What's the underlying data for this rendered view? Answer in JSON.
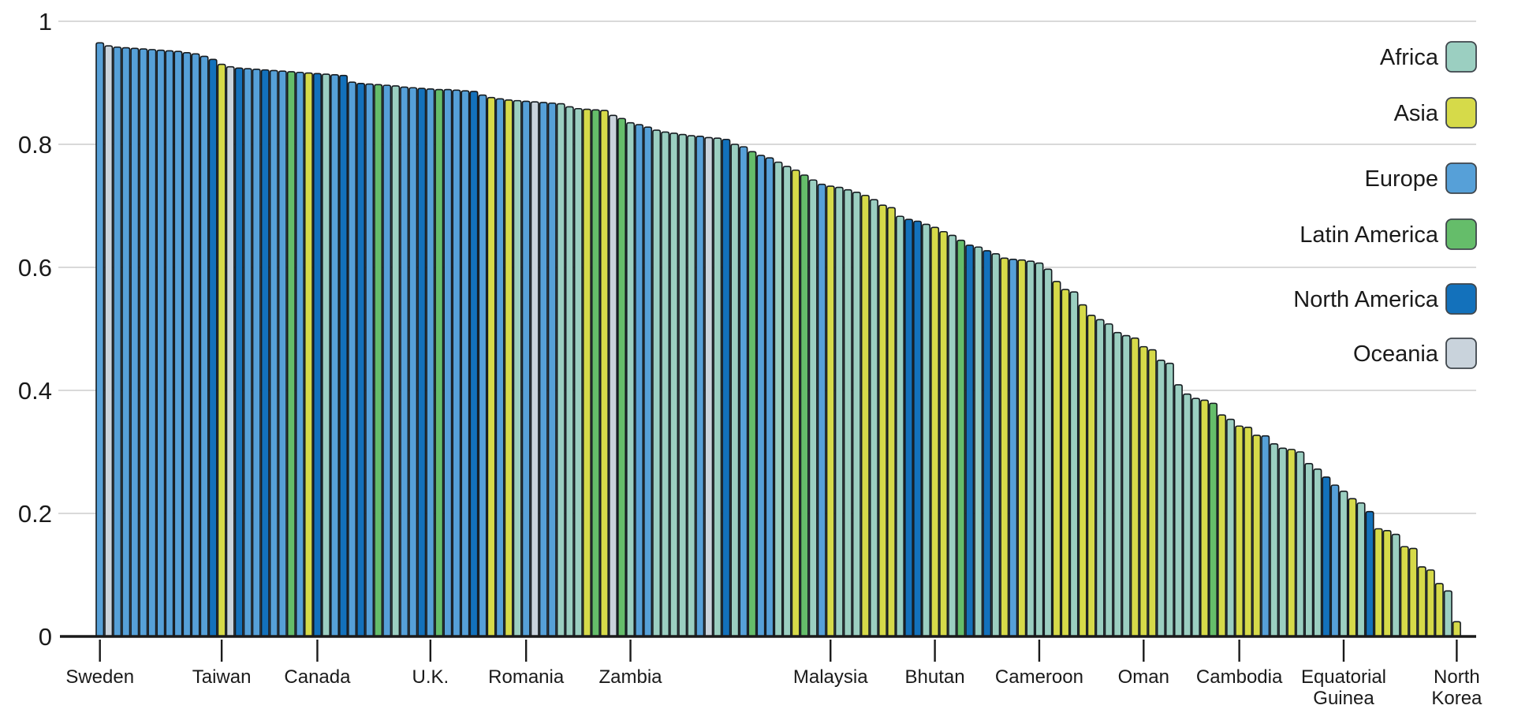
{
  "chart_data": {
    "type": "bar",
    "description": "Countries ranked in descending order of a 0-1 index, bar color by continent",
    "bar_count": 157,
    "sort": "descending",
    "y_axis": {
      "min": 0,
      "max": 1,
      "ticks": [
        0,
        0.2,
        0.4,
        0.6,
        0.8,
        1
      ],
      "tick_labels": [
        "0",
        "0.2",
        "0.4",
        "0.6",
        "0.8",
        "1"
      ],
      "grid": true
    },
    "x_axis": {
      "ticks": [
        {
          "rank": 1,
          "label": "Sweden",
          "lines": [
            "Sweden"
          ]
        },
        {
          "rank": 15,
          "label": "Taiwan",
          "lines": [
            "Taiwan"
          ]
        },
        {
          "rank": 26,
          "label": "Canada",
          "lines": [
            "Canada"
          ]
        },
        {
          "rank": 39,
          "label": "U.K.",
          "lines": [
            "U.K."
          ]
        },
        {
          "rank": 50,
          "label": "Romania",
          "lines": [
            "Romania"
          ]
        },
        {
          "rank": 62,
          "label": "Zambia",
          "lines": [
            "Zambia"
          ]
        },
        {
          "rank": 85,
          "label": "Malaysia",
          "lines": [
            "Malaysia"
          ]
        },
        {
          "rank": 97,
          "label": "Bhutan",
          "lines": [
            "Bhutan"
          ]
        },
        {
          "rank": 109,
          "label": "Cameroon",
          "lines": [
            "Cameroon"
          ]
        },
        {
          "rank": 121,
          "label": "Oman",
          "lines": [
            "Oman"
          ]
        },
        {
          "rank": 132,
          "label": "Cambodia",
          "lines": [
            "Cambodia"
          ]
        },
        {
          "rank": 144,
          "label": "Equatorial Guinea",
          "lines": [
            "Equatorial",
            "Guinea"
          ]
        },
        {
          "rank": 157,
          "label": "North Korea",
          "lines": [
            "North",
            "Korea"
          ]
        }
      ]
    },
    "legend": {
      "position": "top-right",
      "items": [
        {
          "code": "AF",
          "label": "Africa",
          "color": "#9bcfc1"
        },
        {
          "code": "AS",
          "label": "Asia",
          "color": "#d6da49"
        },
        {
          "code": "EU",
          "label": "Europe",
          "color": "#56a0d8"
        },
        {
          "code": "LA",
          "label": "Latin America",
          "color": "#65bd6a"
        },
        {
          "code": "NA",
          "label": "North America",
          "color": "#1371bb"
        },
        {
          "code": "OC",
          "label": "Oceania",
          "color": "#c9d3dc"
        }
      ]
    },
    "bars": {
      "values": [
        0.965,
        0.96,
        0.958,
        0.957,
        0.956,
        0.955,
        0.954,
        0.953,
        0.952,
        0.951,
        0.949,
        0.947,
        0.943,
        0.938,
        0.93,
        0.926,
        0.924,
        0.923,
        0.922,
        0.921,
        0.92,
        0.919,
        0.918,
        0.917,
        0.916,
        0.915,
        0.914,
        0.913,
        0.912,
        0.901,
        0.899,
        0.898,
        0.897,
        0.896,
        0.895,
        0.893,
        0.892,
        0.891,
        0.89,
        0.889,
        0.889,
        0.888,
        0.887,
        0.886,
        0.88,
        0.876,
        0.874,
        0.872,
        0.871,
        0.87,
        0.869,
        0.868,
        0.867,
        0.866,
        0.861,
        0.858,
        0.857,
        0.856,
        0.855,
        0.847,
        0.842,
        0.835,
        0.832,
        0.828,
        0.823,
        0.82,
        0.818,
        0.816,
        0.814,
        0.813,
        0.811,
        0.81,
        0.808,
        0.8,
        0.796,
        0.788,
        0.782,
        0.778,
        0.771,
        0.764,
        0.758,
        0.75,
        0.742,
        0.735,
        0.732,
        0.73,
        0.726,
        0.722,
        0.717,
        0.71,
        0.701,
        0.697,
        0.683,
        0.678,
        0.675,
        0.67,
        0.665,
        0.658,
        0.652,
        0.644,
        0.636,
        0.633,
        0.627,
        0.622,
        0.615,
        0.613,
        0.612,
        0.61,
        0.607,
        0.597,
        0.577,
        0.564,
        0.56,
        0.539,
        0.522,
        0.515,
        0.508,
        0.494,
        0.489,
        0.485,
        0.471,
        0.466,
        0.449,
        0.444,
        0.409,
        0.394,
        0.387,
        0.384,
        0.379,
        0.36,
        0.353,
        0.342,
        0.34,
        0.327,
        0.326,
        0.313,
        0.306,
        0.304,
        0.3,
        0.281,
        0.272,
        0.259,
        0.246,
        0.236,
        0.224,
        0.217,
        0.203,
        0.175,
        0.172,
        0.166,
        0.146,
        0.143,
        0.113,
        0.108,
        0.086,
        0.074,
        0.024
      ],
      "continents": [
        "EU",
        "OC",
        "EU",
        "EU",
        "EU",
        "EU",
        "EU",
        "EU",
        "EU",
        "EU",
        "EU",
        "EU",
        "EU",
        "NA",
        "AS",
        "OC",
        "NA",
        "EU",
        "EU",
        "NA",
        "EU",
        "EU",
        "LA",
        "EU",
        "AS",
        "NA",
        "AF",
        "EU",
        "NA",
        "EU",
        "NA",
        "EU",
        "LA",
        "EU",
        "AF",
        "EU",
        "EU",
        "NA",
        "EU",
        "LA",
        "EU",
        "EU",
        "EU",
        "NA",
        "EU",
        "AS",
        "EU",
        "AS",
        "AF",
        "EU",
        "OC",
        "EU",
        "EU",
        "AF",
        "AF",
        "AF",
        "AS",
        "LA",
        "AS",
        "OC",
        "LA",
        "AF",
        "EU",
        "EU",
        "AF",
        "AF",
        "AF",
        "AF",
        "AF",
        "EU",
        "OC",
        "AF",
        "NA",
        "AF",
        "EU",
        "LA",
        "EU",
        "EU",
        "AF",
        "AF",
        "AS",
        "LA",
        "AF",
        "EU",
        "AS",
        "AF",
        "AF",
        "AF",
        "AS",
        "AF",
        "AS",
        "AS",
        "AF",
        "NA",
        "NA",
        "AF",
        "AS",
        "AS",
        "AF",
        "LA",
        "NA",
        "AF",
        "NA",
        "AF",
        "AS",
        "EU",
        "AS",
        "AF",
        "AF",
        "AF",
        "AS",
        "AS",
        "AF",
        "AS",
        "AS",
        "AF",
        "AF",
        "AF",
        "AF",
        "AS",
        "AS",
        "AS",
        "AF",
        "AF",
        "AF",
        "AF",
        "AF",
        "AS",
        "LA",
        "AS",
        "AF",
        "AS",
        "AS",
        "AS",
        "EU",
        "AF",
        "AF",
        "AS",
        "AF",
        "AF",
        "AF",
        "NA",
        "EU",
        "AF",
        "AS",
        "AF",
        "NA",
        "AS",
        "AS",
        "AF",
        "AS",
        "AS",
        "AS",
        "AS",
        "AS",
        "AF",
        "AS"
      ]
    },
    "styles": {
      "background": "#ffffff",
      "bar_stroke": "#151b20",
      "grid_color": "#d9d9d9",
      "axis_color": "#1a1a1a",
      "text_color": "#1a1a1a"
    }
  }
}
